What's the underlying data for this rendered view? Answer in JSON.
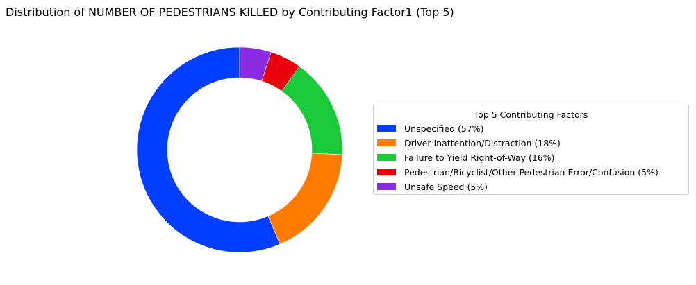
{
  "chart_data": {
    "type": "pie",
    "title": "Distribution of NUMBER OF PEDESTRIANS KILLED by Contributing Factor1 (Top 5)",
    "legend_title": "Top 5 Contributing Factors",
    "legend_placement": "right",
    "slices": [
      {
        "label": "Unspecified (57%)",
        "value": 57,
        "color": "#023eff"
      },
      {
        "label": "Driver Inattention/Distraction (18%)",
        "value": 18,
        "color": "#ff7c00"
      },
      {
        "label": "Failure to Yield Right-of-Way (16%)",
        "value": 16,
        "color": "#1ac938"
      },
      {
        "label": "Pedestrian/Bicyclist/Other Pedestrian Error/Confusion (5%)",
        "value": 5,
        "color": "#e8000b"
      },
      {
        "label": "Unsafe Speed (5%)",
        "value": 5,
        "color": "#8b2be2"
      }
    ]
  }
}
